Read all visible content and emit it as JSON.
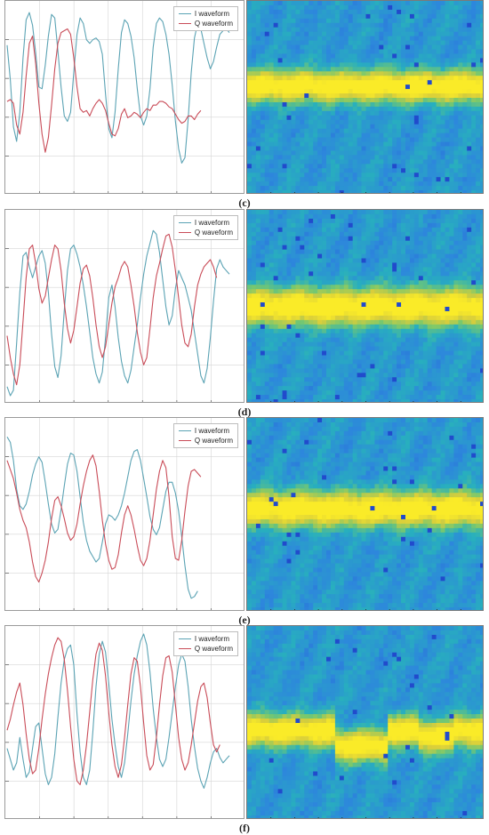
{
  "colors": {
    "i_waveform": "#5ba3b4",
    "q_waveform": "#c94c58",
    "grid": "#d6d6d6",
    "spectrogram_background": "#2f8fd8",
    "spectrogram_band": "#f5df2e"
  },
  "panels": [
    {
      "caption": "(c)",
      "show_legend": true,
      "legend": [
        "I waveform",
        "Q waveform"
      ],
      "spectrogram": {
        "band_center": 0.44,
        "band_width": 0.17,
        "kind": "flat"
      }
    },
    {
      "caption": "(d)",
      "show_legend": true,
      "legend": [
        "I waveform",
        "Q waveform"
      ],
      "spectrogram": {
        "band_center": 0.5,
        "band_width": 0.2,
        "kind": "flat"
      }
    },
    {
      "caption": "(e)",
      "show_legend": true,
      "legend": [
        "I waveform",
        "Q waveform"
      ],
      "spectrogram": {
        "band_center": 0.47,
        "band_width": 0.19,
        "kind": "flat"
      }
    },
    {
      "caption": "(f)",
      "show_legend": true,
      "legend": [
        "I waveform",
        "Q waveform"
      ],
      "spectrogram": {
        "band_center": 0.54,
        "band_width": 0.17,
        "kind": "step"
      }
    }
  ],
  "chart_data": [
    {
      "type": "line",
      "x": [
        0,
        1,
        2,
        3,
        4,
        5,
        6,
        7,
        8,
        9,
        10,
        11,
        12,
        13,
        14,
        15,
        16,
        17,
        18,
        19,
        20,
        21,
        22,
        23,
        24,
        25,
        26,
        27,
        28,
        29,
        30,
        31,
        32,
        33,
        34,
        35,
        36,
        37,
        38,
        39,
        40,
        41,
        42,
        43,
        44,
        45,
        46,
        47,
        48,
        49,
        50,
        51,
        52,
        53,
        54,
        55,
        56,
        57,
        58,
        59,
        60,
        61,
        62,
        63,
        64,
        65,
        66,
        67,
        68,
        69,
        70
      ],
      "ylim": [
        0,
        1
      ],
      "series": [
        {
          "name": "I waveform",
          "values": [
            0.79,
            0.6,
            0.34,
            0.26,
            0.42,
            0.72,
            0.93,
            0.97,
            0.9,
            0.75,
            0.56,
            0.55,
            0.68,
            0.84,
            0.96,
            0.94,
            0.76,
            0.56,
            0.4,
            0.37,
            0.42,
            0.64,
            0.85,
            0.94,
            0.91,
            0.82,
            0.8,
            0.82,
            0.83,
            0.81,
            0.74,
            0.52,
            0.33,
            0.28,
            0.42,
            0.66,
            0.86,
            0.93,
            0.91,
            0.84,
            0.72,
            0.55,
            0.4,
            0.35,
            0.4,
            0.55,
            0.78,
            0.91,
            0.94,
            0.92,
            0.85,
            0.74,
            0.57,
            0.37,
            0.22,
            0.14,
            0.17,
            0.38,
            0.64,
            0.83,
            0.91,
            0.88,
            0.8,
            0.72,
            0.66,
            0.7,
            0.78,
            0.85,
            0.87,
            0.88,
            0.86
          ]
        },
        {
          "name": "Q waveform",
          "values": [
            0.48,
            0.49,
            0.47,
            0.35,
            0.3,
            0.42,
            0.62,
            0.8,
            0.84,
            0.69,
            0.47,
            0.3,
            0.2,
            0.28,
            0.46,
            0.66,
            0.8,
            0.86,
            0.87,
            0.88,
            0.85,
            0.72,
            0.56,
            0.44,
            0.42,
            0.43,
            0.4,
            0.44,
            0.47,
            0.49,
            0.47,
            0.43,
            0.36,
            0.3,
            0.29,
            0.33,
            0.41,
            0.44,
            0.39,
            0.4,
            0.42,
            0.41,
            0.39,
            0.42,
            0.44,
            0.43,
            0.46,
            0.46,
            0.48,
            0.48,
            0.47,
            0.45,
            0.44,
            0.41,
            0.38,
            0.36,
            0.37,
            0.4,
            0.4,
            0.38,
            0.41,
            0.43,
            null,
            null,
            null,
            null,
            null,
            null,
            null,
            null,
            null
          ]
        }
      ]
    },
    {
      "type": "line",
      "x": [
        0,
        1,
        2,
        3,
        4,
        5,
        6,
        7,
        8,
        9,
        10,
        11,
        12,
        13,
        14,
        15,
        16,
        17,
        18,
        19,
        20,
        21,
        22,
        23,
        24,
        25,
        26,
        27,
        28,
        29,
        30,
        31,
        32,
        33,
        34,
        35,
        36,
        37,
        38,
        39,
        40,
        41,
        42,
        43,
        44,
        45,
        46,
        47,
        48,
        49,
        50,
        51,
        52,
        53,
        54,
        55,
        56,
        57,
        58,
        59,
        60,
        61,
        62,
        63,
        64,
        65,
        66,
        67,
        68,
        69,
        70
      ],
      "ylim": [
        0,
        1
      ],
      "series": [
        {
          "name": "I waveform",
          "values": [
            0.06,
            0.01,
            0.04,
            0.3,
            0.58,
            0.78,
            0.8,
            0.72,
            0.66,
            0.72,
            0.78,
            0.81,
            0.74,
            0.58,
            0.35,
            0.17,
            0.11,
            0.23,
            0.48,
            0.7,
            0.82,
            0.84,
            0.79,
            0.72,
            0.62,
            0.5,
            0.36,
            0.22,
            0.13,
            0.08,
            0.14,
            0.33,
            0.55,
            0.62,
            0.5,
            0.33,
            0.2,
            0.12,
            0.08,
            0.15,
            0.28,
            0.4,
            0.55,
            0.68,
            0.78,
            0.85,
            0.92,
            0.9,
            0.8,
            0.65,
            0.5,
            0.4,
            0.45,
            0.6,
            0.7,
            0.66,
            0.62,
            0.55,
            0.48,
            0.36,
            0.24,
            0.12,
            0.08,
            0.16,
            0.33,
            0.53,
            0.71,
            0.76,
            0.72,
            0.7,
            0.68
          ]
        },
        {
          "name": "Q waveform",
          "values": [
            0.34,
            0.22,
            0.13,
            0.07,
            0.18,
            0.42,
            0.66,
            0.82,
            0.84,
            0.74,
            0.6,
            0.52,
            0.56,
            0.66,
            0.76,
            0.84,
            0.82,
            0.7,
            0.52,
            0.38,
            0.3,
            0.37,
            0.5,
            0.63,
            0.71,
            0.73,
            0.67,
            0.55,
            0.4,
            0.28,
            0.22,
            0.28,
            0.4,
            0.52,
            0.61,
            0.66,
            0.72,
            0.75,
            0.72,
            0.62,
            0.5,
            0.36,
            0.25,
            0.18,
            0.22,
            0.38,
            0.55,
            0.67,
            0.74,
            0.82,
            0.89,
            0.9,
            0.83,
            0.7,
            0.55,
            0.4,
            0.3,
            0.28,
            0.35,
            0.5,
            0.62,
            0.68,
            0.72,
            0.74,
            0.76,
            0.72,
            0.66,
            null,
            null,
            null,
            null
          ]
        }
      ]
    },
    {
      "type": "line",
      "x": [
        0,
        1,
        2,
        3,
        4,
        5,
        6,
        7,
        8,
        9,
        10,
        11,
        12,
        13,
        14,
        15,
        16,
        17,
        18,
        19,
        20,
        21,
        22,
        23,
        24,
        25,
        26,
        27,
        28,
        29,
        30,
        31,
        32,
        33,
        34,
        35,
        36,
        37,
        38,
        39,
        40,
        41,
        42,
        43,
        44,
        45,
        46,
        47,
        48,
        49,
        50,
        51,
        52,
        53,
        54,
        55,
        56,
        57,
        58,
        59,
        60,
        61,
        62,
        63,
        64,
        65,
        66,
        67,
        68,
        69,
        70
      ],
      "ylim": [
        0,
        1
      ],
      "series": [
        {
          "name": "I waveform",
          "values": [
            0.93,
            0.9,
            0.8,
            0.64,
            0.55,
            0.53,
            0.56,
            0.63,
            0.72,
            0.78,
            0.82,
            0.79,
            0.68,
            0.56,
            0.45,
            0.4,
            0.42,
            0.53,
            0.66,
            0.78,
            0.84,
            0.83,
            0.74,
            0.6,
            0.46,
            0.36,
            0.3,
            0.27,
            0.24,
            0.26,
            0.35,
            0.45,
            0.5,
            0.49,
            0.47,
            0.5,
            0.55,
            0.62,
            0.71,
            0.8,
            0.85,
            0.86,
            0.8,
            0.7,
            0.6,
            0.49,
            0.42,
            0.39,
            0.43,
            0.53,
            0.63,
            0.68,
            0.68,
            0.62,
            0.52,
            0.38,
            0.22,
            0.09,
            0.04,
            0.05,
            0.08,
            null,
            null,
            null,
            null,
            null,
            null,
            null,
            null,
            null,
            null
          ]
        },
        {
          "name": "Q waveform",
          "values": [
            0.8,
            0.75,
            0.7,
            0.62,
            0.53,
            0.47,
            0.43,
            0.35,
            0.24,
            0.16,
            0.13,
            0.18,
            0.25,
            0.35,
            0.48,
            0.58,
            0.6,
            0.55,
            0.48,
            0.4,
            0.36,
            0.38,
            0.45,
            0.56,
            0.66,
            0.74,
            0.8,
            0.83,
            0.77,
            0.63,
            0.47,
            0.34,
            0.25,
            0.2,
            0.21,
            0.28,
            0.4,
            0.5,
            0.55,
            0.5,
            0.42,
            0.33,
            0.25,
            0.22,
            0.26,
            0.36,
            0.5,
            0.64,
            0.74,
            0.8,
            0.76,
            0.6,
            0.38,
            0.26,
            0.25,
            0.36,
            0.52,
            0.66,
            0.74,
            0.75,
            0.73,
            0.71,
            null,
            null,
            null,
            null,
            null,
            null,
            null,
            null,
            null
          ]
        }
      ]
    },
    {
      "type": "line",
      "x": [
        0,
        1,
        2,
        3,
        4,
        5,
        6,
        7,
        8,
        9,
        10,
        11,
        12,
        13,
        14,
        15,
        16,
        17,
        18,
        19,
        20,
        21,
        22,
        23,
        24,
        25,
        26,
        27,
        28,
        29,
        30,
        31,
        32,
        33,
        34,
        35,
        36,
        37,
        38,
        39,
        40,
        41,
        42,
        43,
        44,
        45,
        46,
        47,
        48,
        49,
        50,
        51,
        52,
        53,
        54,
        55,
        56,
        57,
        58,
        59,
        60,
        61,
        62,
        63,
        64,
        65,
        66,
        67,
        68,
        69,
        70
      ],
      "ylim": [
        0,
        1
      ],
      "series": [
        {
          "name": "I waveform",
          "values": [
            0.36,
            0.3,
            0.24,
            0.28,
            0.42,
            0.3,
            0.2,
            0.23,
            0.36,
            0.48,
            0.5,
            0.36,
            0.22,
            0.16,
            0.2,
            0.33,
            0.53,
            0.72,
            0.85,
            0.91,
            0.93,
            0.82,
            0.55,
            0.34,
            0.2,
            0.16,
            0.24,
            0.45,
            0.7,
            0.88,
            0.95,
            0.89,
            0.72,
            0.52,
            0.38,
            0.26,
            0.2,
            0.28,
            0.44,
            0.62,
            0.77,
            0.87,
            0.95,
            0.99,
            0.93,
            0.78,
            0.58,
            0.42,
            0.3,
            0.26,
            0.3,
            0.42,
            0.56,
            0.7,
            0.82,
            0.88,
            0.84,
            0.7,
            0.52,
            0.37,
            0.25,
            0.18,
            0.14,
            0.2,
            0.28,
            0.34,
            0.36,
            0.31,
            0.28,
            0.3,
            0.32
          ]
        },
        {
          "name": "Q waveform",
          "values": [
            0.46,
            0.52,
            0.6,
            0.67,
            0.72,
            0.6,
            0.44,
            0.3,
            0.22,
            0.24,
            0.36,
            0.52,
            0.66,
            0.77,
            0.86,
            0.93,
            0.97,
            0.95,
            0.85,
            0.68,
            0.48,
            0.3,
            0.18,
            0.16,
            0.24,
            0.38,
            0.56,
            0.74,
            0.88,
            0.94,
            0.9,
            0.76,
            0.56,
            0.38,
            0.26,
            0.2,
            0.27,
            0.42,
            0.6,
            0.77,
            0.86,
            0.84,
            0.7,
            0.5,
            0.32,
            0.24,
            0.27,
            0.42,
            0.6,
            0.76,
            0.86,
            0.87,
            0.78,
            0.6,
            0.42,
            0.3,
            0.24,
            0.28,
            0.38,
            0.5,
            0.62,
            0.7,
            0.72,
            0.64,
            0.5,
            0.38,
            0.34,
            0.38,
            null,
            null,
            null
          ]
        }
      ]
    }
  ]
}
